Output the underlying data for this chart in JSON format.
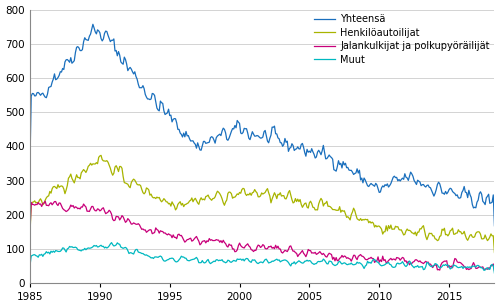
{
  "title": "",
  "xlabel": "",
  "ylabel": "",
  "xlim": [
    1985.0,
    2018.25
  ],
  "ylim": [
    0,
    800
  ],
  "yticks": [
    0,
    100,
    200,
    300,
    400,
    500,
    600,
    700,
    800
  ],
  "xticks": [
    1985,
    1990,
    1995,
    2000,
    2005,
    2010,
    2015
  ],
  "legend_labels": [
    "Yhteensä",
    "Henkilöautoilijat",
    "Jalankulkijat ja polkupyröäiilijät",
    "Muut"
  ],
  "legend_colors": [
    "#1a6fbd",
    "#a8b400",
    "#c8007a",
    "#00b8c0"
  ],
  "background_color": "#ffffff",
  "grid_color": "#cccccc"
}
